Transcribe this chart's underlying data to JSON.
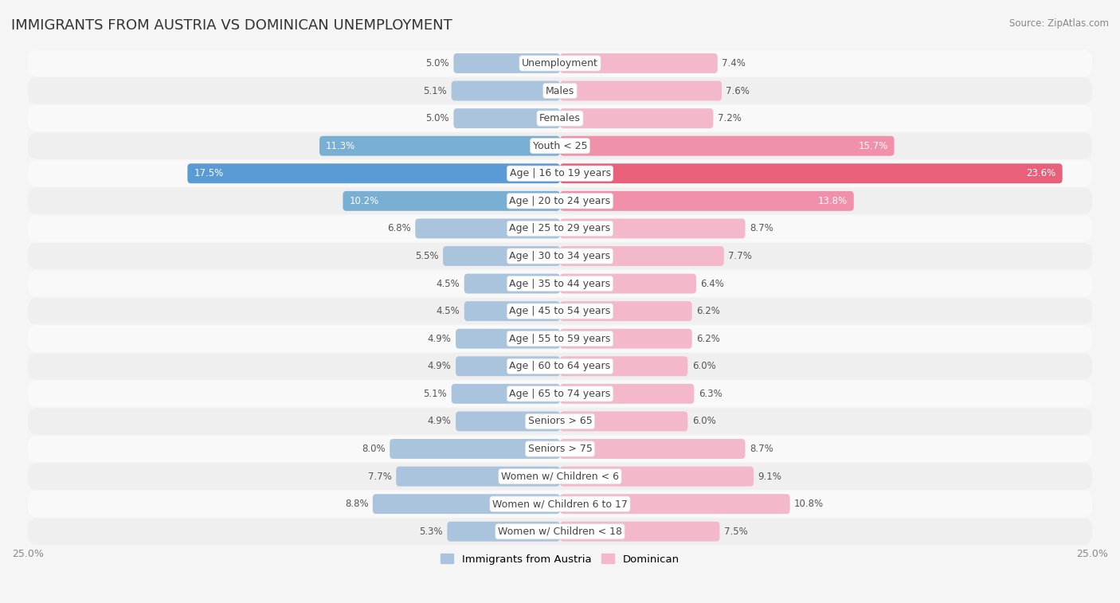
{
  "title": "IMMIGRANTS FROM AUSTRIA VS DOMINICAN UNEMPLOYMENT",
  "source": "Source: ZipAtlas.com",
  "categories": [
    "Unemployment",
    "Males",
    "Females",
    "Youth < 25",
    "Age | 16 to 19 years",
    "Age | 20 to 24 years",
    "Age | 25 to 29 years",
    "Age | 30 to 34 years",
    "Age | 35 to 44 years",
    "Age | 45 to 54 years",
    "Age | 55 to 59 years",
    "Age | 60 to 64 years",
    "Age | 65 to 74 years",
    "Seniors > 65",
    "Seniors > 75",
    "Women w/ Children < 6",
    "Women w/ Children 6 to 17",
    "Women w/ Children < 18"
  ],
  "austria_values": [
    5.0,
    5.1,
    5.0,
    11.3,
    17.5,
    10.2,
    6.8,
    5.5,
    4.5,
    4.5,
    4.9,
    4.9,
    5.1,
    4.9,
    8.0,
    7.7,
    8.8,
    5.3
  ],
  "dominican_values": [
    7.4,
    7.6,
    7.2,
    15.7,
    23.6,
    13.8,
    8.7,
    7.7,
    6.4,
    6.2,
    6.2,
    6.0,
    6.3,
    6.0,
    8.7,
    9.1,
    10.8,
    7.5
  ],
  "austria_color_normal": "#aac4de",
  "austria_color_medium": "#7aafd4",
  "austria_color_strong": "#5b9bd5",
  "dominican_color_normal": "#f4b8cb",
  "dominican_color_medium": "#f090aa",
  "dominican_color_strong": "#e8607a",
  "row_bg_even": "#f9f9f9",
  "row_bg_odd": "#efefef",
  "background_color": "#f5f5f5",
  "axis_max": 25.0,
  "legend_label_austria": "Immigrants from Austria",
  "legend_label_dominican": "Dominican",
  "bar_height": 0.72,
  "title_fontsize": 13,
  "label_fontsize": 9,
  "value_fontsize": 8.5,
  "axis_label_fontsize": 9
}
